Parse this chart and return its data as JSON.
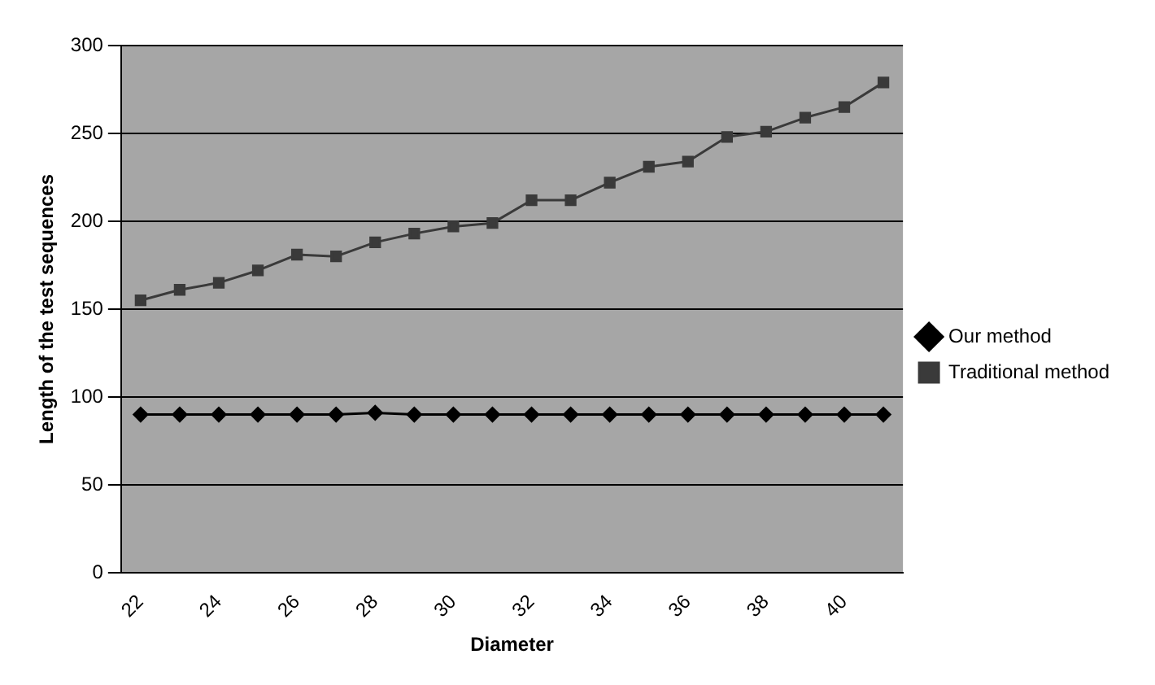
{
  "chart_data": {
    "type": "line",
    "xlabel": "Diameter",
    "ylabel": "Length of the test sequences",
    "categories": [
      "22",
      null,
      "24",
      null,
      "26",
      null,
      "28",
      null,
      "30",
      null,
      "32",
      null,
      "34",
      null,
      "36",
      null,
      "38",
      null,
      "40",
      null
    ],
    "series": [
      {
        "name": "Our method",
        "color": "#000000",
        "marker": "diamond",
        "values": [
          90,
          90,
          90,
          90,
          90,
          90,
          91,
          90,
          90,
          90,
          90,
          90,
          90,
          90,
          90,
          90,
          90,
          90,
          90,
          90
        ]
      },
      {
        "name": "Traditional method",
        "color": "#3a3a3a",
        "marker": "square",
        "values": [
          155,
          161,
          165,
          172,
          181,
          180,
          188,
          193,
          197,
          199,
          212,
          212,
          222,
          231,
          234,
          248,
          251,
          259,
          265,
          279
        ]
      }
    ],
    "ylim": [
      0,
      300
    ],
    "yticks": [
      0,
      50,
      100,
      150,
      200,
      250,
      300
    ],
    "grid": "y",
    "legend": "right",
    "line_style": "solid"
  }
}
